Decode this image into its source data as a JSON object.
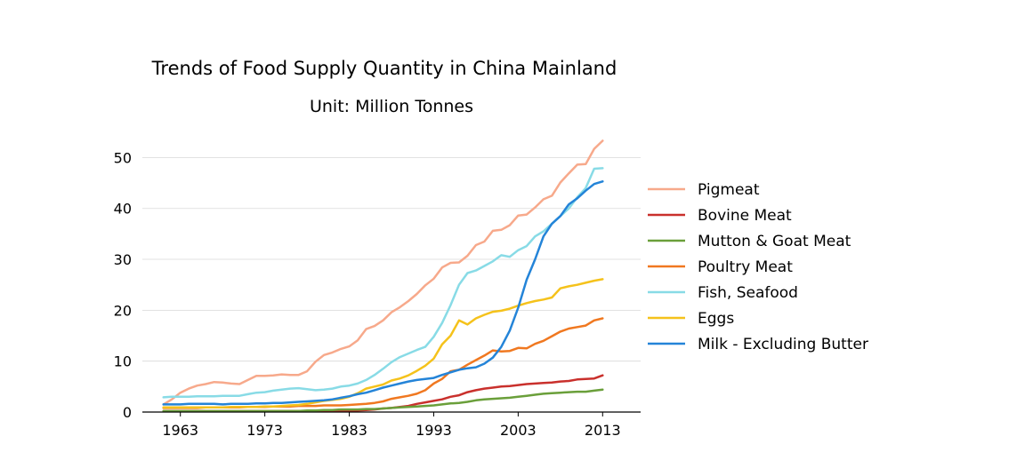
{
  "chart_data": {
    "type": "line",
    "title": "Trends of Food Supply Quantity in China Mainland",
    "subtitle": "Unit: Million Tonnes",
    "xlabel": "",
    "ylabel": "",
    "xlim": [
      1958.5,
      2017.5
    ],
    "ylim": [
      0,
      56
    ],
    "xticks": [
      1963,
      1973,
      1983,
      1993,
      2003,
      2013
    ],
    "yticks": [
      0,
      10,
      20,
      30,
      40,
      50
    ],
    "grid": true,
    "legend_position": "right",
    "x": [
      1961,
      1962,
      1963,
      1964,
      1965,
      1966,
      1967,
      1968,
      1969,
      1970,
      1971,
      1972,
      1973,
      1974,
      1975,
      1976,
      1977,
      1978,
      1979,
      1980,
      1981,
      1982,
      1983,
      1984,
      1985,
      1986,
      1987,
      1988,
      1989,
      1990,
      1991,
      1992,
      1993,
      1994,
      1995,
      1996,
      1997,
      1998,
      1999,
      2000,
      2001,
      2002,
      2003,
      2004,
      2005,
      2006,
      2007,
      2008,
      2009,
      2010,
      2011,
      2012,
      2013
    ],
    "series": [
      {
        "name": "Pigmeat",
        "color": "#f7a98b",
        "values": [
          1.5,
          2.5,
          3.8,
          4.6,
          5.2,
          5.5,
          5.9,
          5.8,
          5.6,
          5.5,
          6.3,
          7.1,
          7.1,
          7.2,
          7.4,
          7.3,
          7.3,
          8.0,
          9.9,
          11.2,
          11.7,
          12.4,
          12.9,
          14.1,
          16.3,
          16.9,
          18.0,
          19.6,
          20.6,
          21.8,
          23.2,
          24.9,
          26.2,
          28.4,
          29.3,
          29.4,
          30.7,
          32.8,
          33.5,
          35.6,
          35.8,
          36.7,
          38.6,
          38.8,
          40.2,
          41.8,
          42.5,
          45.1,
          46.9,
          48.6,
          48.7,
          51.7,
          53.3
        ]
      },
      {
        "name": "Bovine Meat",
        "color": "#c9302c",
        "values": [
          0.2,
          0.2,
          0.2,
          0.2,
          0.2,
          0.2,
          0.2,
          0.2,
          0.2,
          0.2,
          0.2,
          0.2,
          0.2,
          0.2,
          0.2,
          0.2,
          0.2,
          0.2,
          0.2,
          0.2,
          0.2,
          0.2,
          0.3,
          0.3,
          0.4,
          0.5,
          0.7,
          0.8,
          1.0,
          1.2,
          1.6,
          1.9,
          2.2,
          2.5,
          3.0,
          3.3,
          3.9,
          4.3,
          4.6,
          4.8,
          5.0,
          5.1,
          5.3,
          5.5,
          5.6,
          5.7,
          5.8,
          6.0,
          6.1,
          6.4,
          6.5,
          6.6,
          7.2
        ]
      },
      {
        "name": "Mutton & Goat Meat",
        "color": "#6a9f3a",
        "values": [
          0.2,
          0.2,
          0.2,
          0.2,
          0.2,
          0.2,
          0.2,
          0.2,
          0.2,
          0.2,
          0.2,
          0.2,
          0.2,
          0.2,
          0.2,
          0.2,
          0.2,
          0.3,
          0.3,
          0.4,
          0.4,
          0.5,
          0.5,
          0.5,
          0.6,
          0.6,
          0.7,
          0.8,
          0.9,
          1.0,
          1.1,
          1.2,
          1.3,
          1.5,
          1.7,
          1.8,
          2.0,
          2.3,
          2.5,
          2.6,
          2.7,
          2.8,
          3.0,
          3.2,
          3.4,
          3.6,
          3.7,
          3.8,
          3.9,
          4.0,
          4.0,
          4.2,
          4.4
        ]
      },
      {
        "name": "Poultry Meat",
        "color": "#f07820",
        "values": [
          0.8,
          0.8,
          0.8,
          0.8,
          0.8,
          0.9,
          0.9,
          0.9,
          0.9,
          0.9,
          1.0,
          1.0,
          1.0,
          1.1,
          1.1,
          1.1,
          1.2,
          1.2,
          1.2,
          1.3,
          1.3,
          1.3,
          1.4,
          1.5,
          1.6,
          1.8,
          2.1,
          2.6,
          2.9,
          3.2,
          3.6,
          4.3,
          5.6,
          6.5,
          8.0,
          8.3,
          9.3,
          10.2,
          11.1,
          12.1,
          11.9,
          12.0,
          12.6,
          12.5,
          13.4,
          14.0,
          14.9,
          15.8,
          16.4,
          16.7,
          17.0,
          18.0,
          18.4
        ]
      },
      {
        "name": "Fish, Seafood",
        "color": "#88dbe6",
        "values": [
          2.9,
          3.0,
          3.0,
          3.0,
          3.1,
          3.1,
          3.1,
          3.2,
          3.2,
          3.2,
          3.5,
          3.8,
          3.9,
          4.2,
          4.4,
          4.6,
          4.7,
          4.5,
          4.3,
          4.4,
          4.6,
          5.0,
          5.2,
          5.6,
          6.3,
          7.3,
          8.5,
          9.8,
          10.8,
          11.5,
          12.2,
          12.8,
          14.8,
          17.5,
          21.0,
          25.0,
          27.3,
          27.8,
          28.7,
          29.6,
          30.8,
          30.5,
          31.8,
          32.6,
          34.5,
          35.5,
          37.0,
          38.5,
          40.0,
          42.2,
          44.0,
          47.8,
          47.9
        ]
      },
      {
        "name": "Eggs",
        "color": "#f5c21b",
        "values": [
          0.9,
          0.9,
          0.9,
          0.9,
          0.9,
          0.9,
          0.9,
          0.9,
          1.0,
          1.0,
          1.0,
          1.0,
          1.1,
          1.1,
          1.2,
          1.3,
          1.4,
          1.6,
          1.9,
          2.2,
          2.4,
          2.6,
          3.0,
          3.7,
          4.6,
          5.0,
          5.4,
          6.2,
          6.6,
          7.2,
          8.1,
          9.1,
          10.5,
          13.3,
          15.0,
          18.0,
          17.2,
          18.4,
          19.1,
          19.7,
          19.9,
          20.3,
          20.9,
          21.4,
          21.8,
          22.1,
          22.5,
          24.3,
          24.7,
          25.0,
          25.4,
          25.8,
          26.1
        ]
      },
      {
        "name": "Milk - Excluding Butter",
        "color": "#2484d8",
        "values": [
          1.5,
          1.5,
          1.5,
          1.6,
          1.6,
          1.6,
          1.6,
          1.5,
          1.6,
          1.6,
          1.6,
          1.7,
          1.7,
          1.8,
          1.8,
          1.9,
          2.0,
          2.1,
          2.2,
          2.3,
          2.5,
          2.8,
          3.1,
          3.5,
          3.8,
          4.3,
          4.8,
          5.2,
          5.6,
          6.0,
          6.3,
          6.5,
          6.7,
          7.3,
          7.8,
          8.3,
          8.6,
          8.8,
          9.5,
          10.7,
          12.8,
          16.0,
          20.5,
          26.0,
          30.0,
          34.5,
          37.0,
          38.5,
          40.8,
          42.0,
          43.5,
          44.8,
          45.3
        ]
      }
    ]
  }
}
